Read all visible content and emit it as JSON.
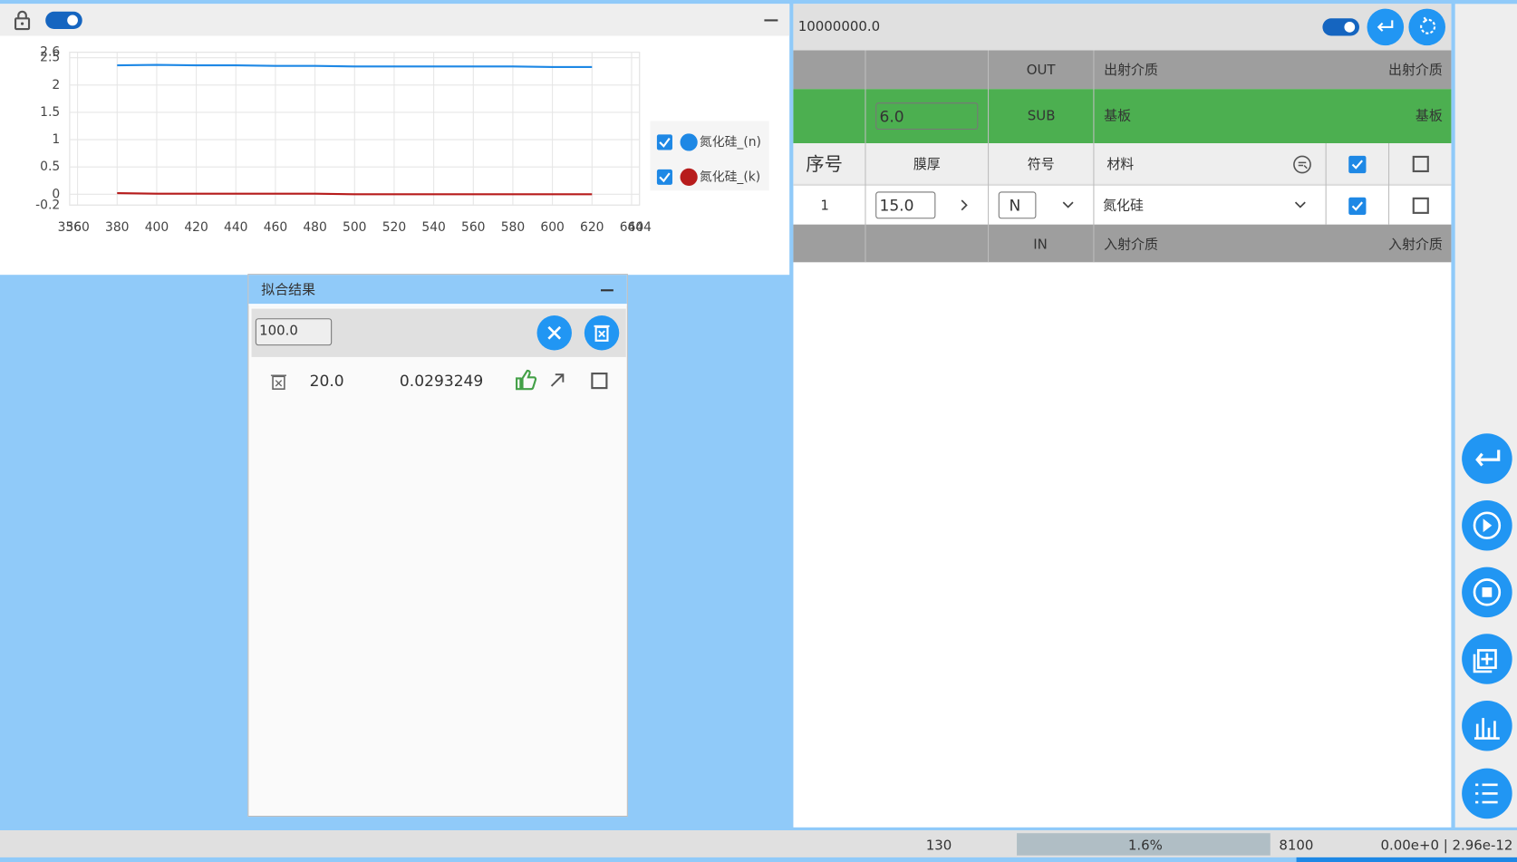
{
  "chart_data": {
    "type": "line",
    "x": [
      380,
      400,
      420,
      440,
      460,
      480,
      500,
      520,
      540,
      560,
      580,
      600,
      620
    ],
    "series": [
      {
        "name": "氮化硅_(n)",
        "color": "#1e88e5",
        "values": [
          2.36,
          2.37,
          2.36,
          2.36,
          2.35,
          2.35,
          2.34,
          2.34,
          2.34,
          2.34,
          2.34,
          2.33,
          2.33
        ]
      },
      {
        "name": "氮化硅_(k)",
        "color": "#b71c1c",
        "values": [
          0.02,
          0.01,
          0.01,
          0.01,
          0.01,
          0.01,
          0.0,
          0.0,
          0.0,
          0.0,
          0.0,
          0.0,
          0.0
        ]
      }
    ],
    "xlim": [
      356,
      644
    ],
    "xticks": [
      356,
      360,
      380,
      400,
      420,
      440,
      460,
      480,
      500,
      520,
      540,
      560,
      580,
      600,
      620,
      640,
      644
    ],
    "ylim": [
      -0.2,
      2.6
    ],
    "yticks": [
      -0.2,
      0,
      0.5,
      1,
      1.5,
      2,
      2.5,
      2.6
    ],
    "grid": true
  },
  "fit_panel": {
    "title": "拟合结果",
    "input": "100.0",
    "results": [
      {
        "thickness": "20.0",
        "error": "0.0293249"
      }
    ]
  },
  "layer_panel": {
    "input": "10000000.0",
    "table": {
      "out_row": [
        "OUT",
        "出射介质",
        "出射介质"
      ],
      "sub_row": [
        "6.0",
        "SUB",
        "基板",
        "基板"
      ],
      "header": [
        "序号",
        "膜厚",
        "符号",
        "材料"
      ],
      "rows": [
        [
          "1",
          "15.0",
          "N",
          "氮化硅"
        ]
      ],
      "in_row": [
        "IN",
        "入射介质",
        "入射介质"
      ]
    }
  },
  "status": [
    "130",
    "1.6%",
    "8100",
    "0.00e+0 | 2.96e-12"
  ]
}
